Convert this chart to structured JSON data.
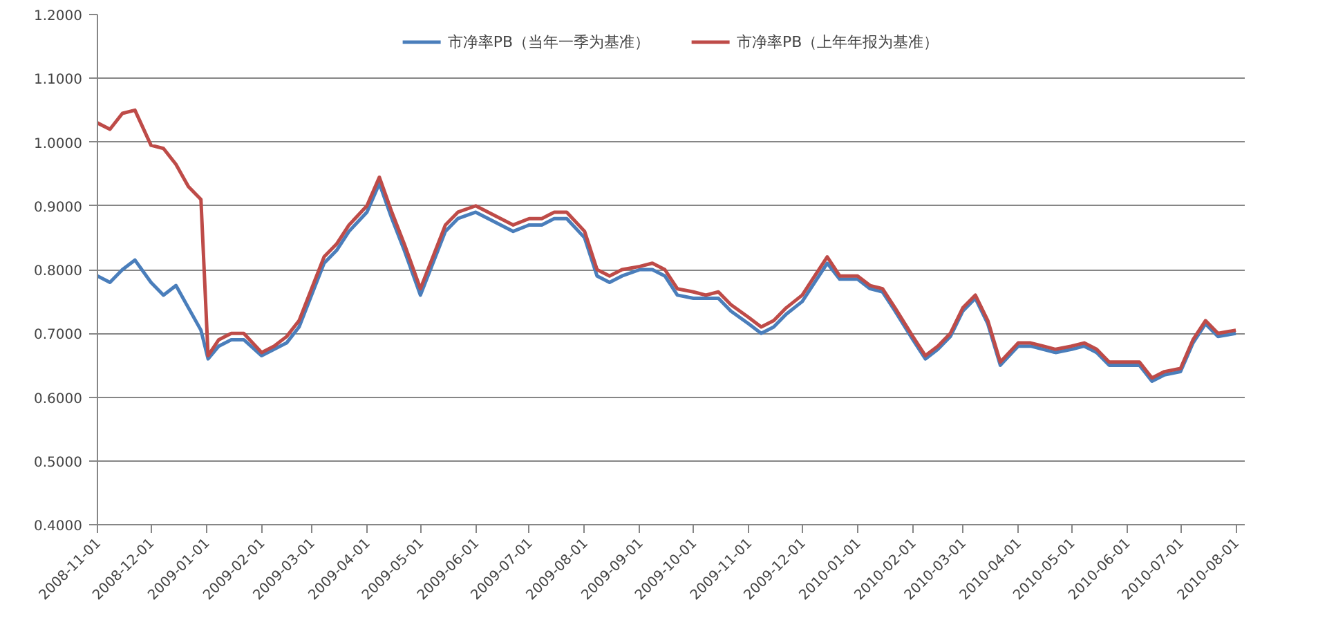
{
  "chart_data": {
    "type": "line",
    "legend": "top",
    "grid": "y",
    "marker": "none",
    "line_style": "solid",
    "x": [
      "2008-11-01",
      "2008-11-08",
      "2008-11-15",
      "2008-11-22",
      "2008-12-01",
      "2008-12-08",
      "2008-12-15",
      "2008-12-22",
      "2008-12-29",
      "2009-01-02",
      "2009-01-08",
      "2009-01-15",
      "2009-01-22",
      "2009-02-01",
      "2009-02-08",
      "2009-02-15",
      "2009-02-22",
      "2009-03-01",
      "2009-03-08",
      "2009-03-15",
      "2009-03-22",
      "2009-04-01",
      "2009-04-08",
      "2009-04-15",
      "2009-04-22",
      "2009-05-01",
      "2009-05-08",
      "2009-05-15",
      "2009-05-22",
      "2009-06-01",
      "2009-06-08",
      "2009-06-15",
      "2009-06-22",
      "2009-07-01",
      "2009-07-08",
      "2009-07-15",
      "2009-07-22",
      "2009-08-01",
      "2009-08-08",
      "2009-08-15",
      "2009-08-22",
      "2009-09-01",
      "2009-09-08",
      "2009-09-15",
      "2009-09-22",
      "2009-10-01",
      "2009-10-08",
      "2009-10-15",
      "2009-10-22",
      "2009-11-01",
      "2009-11-08",
      "2009-11-15",
      "2009-11-22",
      "2009-12-01",
      "2009-12-08",
      "2009-12-15",
      "2009-12-22",
      "2010-01-01",
      "2010-01-08",
      "2010-01-15",
      "2010-01-22",
      "2010-02-01",
      "2010-02-08",
      "2010-02-15",
      "2010-02-22",
      "2010-03-01",
      "2010-03-08",
      "2010-03-15",
      "2010-03-22",
      "2010-04-01",
      "2010-04-08",
      "2010-04-15",
      "2010-04-22",
      "2010-05-01",
      "2010-05-08",
      "2010-05-15",
      "2010-05-22",
      "2010-06-01",
      "2010-06-08",
      "2010-06-15",
      "2010-06-22",
      "2010-07-01",
      "2010-07-08",
      "2010-07-15",
      "2010-07-22",
      "2010-08-01"
    ],
    "series": [
      {
        "name": "市净率PB（当年一季为基准）",
        "color": "#4a7ebb",
        "values": [
          0.79,
          0.78,
          0.8,
          0.815,
          0.78,
          0.76,
          0.775,
          0.74,
          0.705,
          0.66,
          0.68,
          0.69,
          0.69,
          0.665,
          0.675,
          0.685,
          0.71,
          0.76,
          0.81,
          0.83,
          0.86,
          0.89,
          0.935,
          0.88,
          0.83,
          0.76,
          0.81,
          0.86,
          0.88,
          0.89,
          0.88,
          0.87,
          0.86,
          0.87,
          0.87,
          0.88,
          0.88,
          0.85,
          0.79,
          0.78,
          0.79,
          0.8,
          0.8,
          0.79,
          0.76,
          0.755,
          0.755,
          0.755,
          0.735,
          0.715,
          0.7,
          0.71,
          0.73,
          0.75,
          0.78,
          0.81,
          0.785,
          0.785,
          0.77,
          0.765,
          0.735,
          0.69,
          0.66,
          0.675,
          0.695,
          0.735,
          0.755,
          0.715,
          0.65,
          0.68,
          0.68,
          0.675,
          0.67,
          0.675,
          0.68,
          0.67,
          0.65,
          0.65,
          0.65,
          0.625,
          0.635,
          0.64,
          0.685,
          0.715,
          0.695,
          0.7
        ]
      },
      {
        "name": "市净率PB（上年年报为基准）",
        "color": "#be4b48",
        "values": [
          1.03,
          1.02,
          1.045,
          1.05,
          0.995,
          0.99,
          0.965,
          0.93,
          0.91,
          0.665,
          0.69,
          0.7,
          0.7,
          0.67,
          0.68,
          0.695,
          0.72,
          0.77,
          0.82,
          0.84,
          0.87,
          0.9,
          0.945,
          0.89,
          0.84,
          0.77,
          0.82,
          0.87,
          0.89,
          0.9,
          0.89,
          0.88,
          0.87,
          0.88,
          0.88,
          0.89,
          0.89,
          0.86,
          0.8,
          0.79,
          0.8,
          0.805,
          0.81,
          0.8,
          0.77,
          0.765,
          0.76,
          0.765,
          0.745,
          0.725,
          0.71,
          0.72,
          0.74,
          0.76,
          0.79,
          0.82,
          0.79,
          0.79,
          0.775,
          0.77,
          0.74,
          0.695,
          0.665,
          0.68,
          0.7,
          0.74,
          0.76,
          0.72,
          0.655,
          0.685,
          0.685,
          0.68,
          0.675,
          0.68,
          0.685,
          0.675,
          0.655,
          0.655,
          0.655,
          0.63,
          0.64,
          0.645,
          0.69,
          0.72,
          0.7,
          0.705
        ]
      }
    ],
    "ylim": [
      0.4,
      1.2
    ],
    "yticks": [
      {
        "value": 0.4,
        "label": "0.4000"
      },
      {
        "value": 0.5,
        "label": "0.5000"
      },
      {
        "value": 0.6,
        "label": "0.6000"
      },
      {
        "value": 0.7,
        "label": "0.7000"
      },
      {
        "value": 0.8,
        "label": "0.8000"
      },
      {
        "value": 0.9,
        "label": "0.9000"
      },
      {
        "value": 1.0,
        "label": "1.0000"
      },
      {
        "value": 1.1,
        "label": "1.1000"
      },
      {
        "value": 1.2,
        "label": "1.2000"
      }
    ],
    "xlim": [
      "2008-11-01",
      "2010-08-06"
    ],
    "xticks": [
      "2008-11-01",
      "2008-12-01",
      "2009-01-01",
      "2009-02-01",
      "2009-03-01",
      "2009-04-01",
      "2009-05-01",
      "2009-06-01",
      "2009-07-01",
      "2009-08-01",
      "2009-09-01",
      "2009-10-01",
      "2009-11-01",
      "2009-12-01",
      "2010-01-01",
      "2010-02-01",
      "2010-03-01",
      "2010-04-01",
      "2010-05-01",
      "2010-06-01",
      "2010-07-01",
      "2010-08-01"
    ]
  }
}
